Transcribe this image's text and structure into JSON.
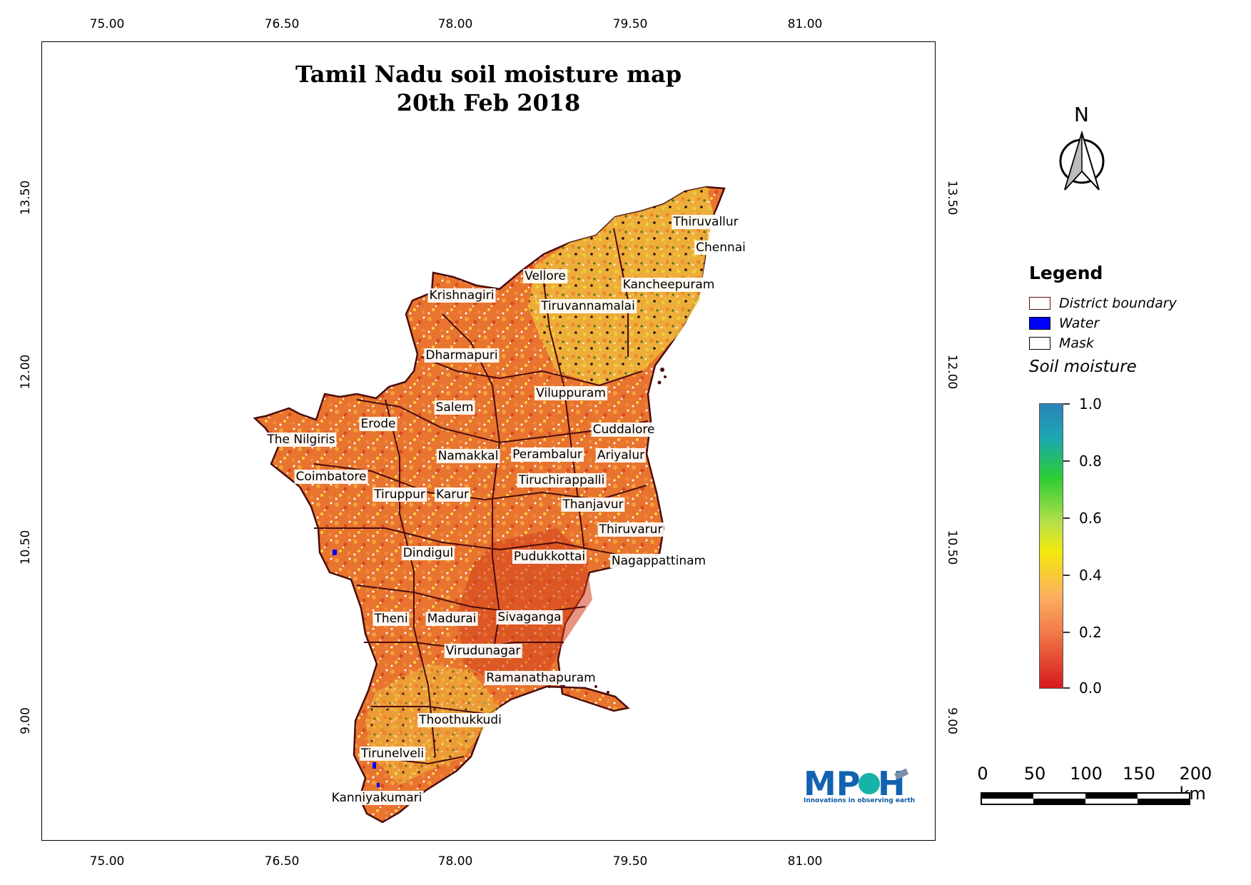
{
  "title": [
    "Tamil Nadu soil moisture map",
    "20th Feb 2018"
  ],
  "axes": {
    "x_ticks": [
      "75.00",
      "76.50",
      "78.00",
      "79.50",
      "81.00"
    ],
    "y_ticks": [
      "13.50",
      "12.00",
      "10.50",
      "9.00"
    ]
  },
  "north_label": "N",
  "districts": [
    "Thiruvallur",
    "Chennai",
    "Vellore",
    "Kancheepuram",
    "Krishnagiri",
    "Tiruvannamalai",
    "Dharmapuri",
    "Viluppuram",
    "Salem",
    "Erode",
    "Cuddalore",
    "The Nilgiris",
    "Namakkal",
    "Perambalur",
    "Ariyalur",
    "Coimbatore",
    "Tiruchirappalli",
    "Tiruppur",
    "Karur",
    "Thanjavur",
    "Thiruvarur",
    "Dindigul",
    "Pudukkottai",
    "Nagappattinam",
    "Theni",
    "Madurai",
    "Sivaganga",
    "Virudunagar",
    "Ramanathapuram",
    "Thoothukkudi",
    "Tirunelveli",
    "Kanniyakumari"
  ],
  "legend": {
    "title": "Legend",
    "items": [
      {
        "label": "District boundary",
        "fill": "#ffffff",
        "stroke": "#5a0f0f"
      },
      {
        "label": "Water",
        "fill": "#0000ff",
        "stroke": "#000000"
      },
      {
        "label": "Mask",
        "fill": "#ffffff",
        "stroke": "#000000"
      }
    ],
    "colorbar_title": "Soil moisture",
    "colorbar_ticks": [
      "1.0",
      "0.8",
      "0.6",
      "0.4",
      "0.2",
      "0.0"
    ]
  },
  "scale_bar": {
    "labels": [
      "0",
      "50",
      "100",
      "150",
      "200 km"
    ]
  },
  "logo": {
    "tagline": "Innovations in observing earth"
  }
}
